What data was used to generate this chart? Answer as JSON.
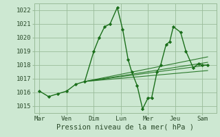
{
  "background_color": "#cde8d2",
  "grid_color": "#99bb99",
  "line_color": "#1a6e1a",
  "marker_color": "#1a6e1a",
  "ylabel_values": [
    1015,
    1016,
    1017,
    1018,
    1019,
    1020,
    1021,
    1022
  ],
  "x_ticks_labels": [
    "Mar",
    "Ven",
    "Dim",
    "Lun",
    "Mer",
    "Jeu",
    "Sam"
  ],
  "x_ticks_pos": [
    0,
    1.5,
    3,
    4.5,
    6,
    7.5,
    9
  ],
  "xlabel": "Pression niveau de la mer( hPa )",
  "ylim": [
    1014.5,
    1022.5
  ],
  "xlim": [
    -0.3,
    9.8
  ],
  "series": [
    [
      0,
      1016.1
    ],
    [
      0.5,
      1015.7
    ],
    [
      1.0,
      1015.9
    ],
    [
      1.5,
      1016.1
    ],
    [
      2.0,
      1016.6
    ],
    [
      2.5,
      1016.8
    ],
    [
      3.0,
      1019.0
    ],
    [
      3.3,
      1020.0
    ],
    [
      3.6,
      1020.8
    ],
    [
      3.9,
      1021.0
    ],
    [
      4.3,
      1022.2
    ],
    [
      4.6,
      1020.6
    ],
    [
      4.9,
      1018.4
    ],
    [
      5.1,
      1017.5
    ],
    [
      5.4,
      1016.5
    ],
    [
      5.7,
      1014.8
    ],
    [
      6.0,
      1015.6
    ],
    [
      6.2,
      1015.6
    ],
    [
      6.5,
      1017.5
    ],
    [
      6.7,
      1018.0
    ],
    [
      7.0,
      1019.5
    ],
    [
      7.2,
      1019.7
    ],
    [
      7.4,
      1020.8
    ],
    [
      7.8,
      1020.4
    ],
    [
      8.1,
      1019.0
    ],
    [
      8.5,
      1017.8
    ],
    [
      8.8,
      1018.1
    ],
    [
      9.0,
      1018.0
    ],
    [
      9.3,
      1018.0
    ]
  ],
  "fan_lines": [
    {
      "x": [
        2.5,
        9.3
      ],
      "y": [
        1016.8,
        1018.2
      ]
    },
    {
      "x": [
        2.5,
        9.3
      ],
      "y": [
        1016.8,
        1018.6
      ]
    },
    {
      "x": [
        2.5,
        9.3
      ],
      "y": [
        1016.8,
        1017.6
      ]
    },
    {
      "x": [
        2.5,
        9.3
      ],
      "y": [
        1016.8,
        1018.0
      ]
    }
  ]
}
